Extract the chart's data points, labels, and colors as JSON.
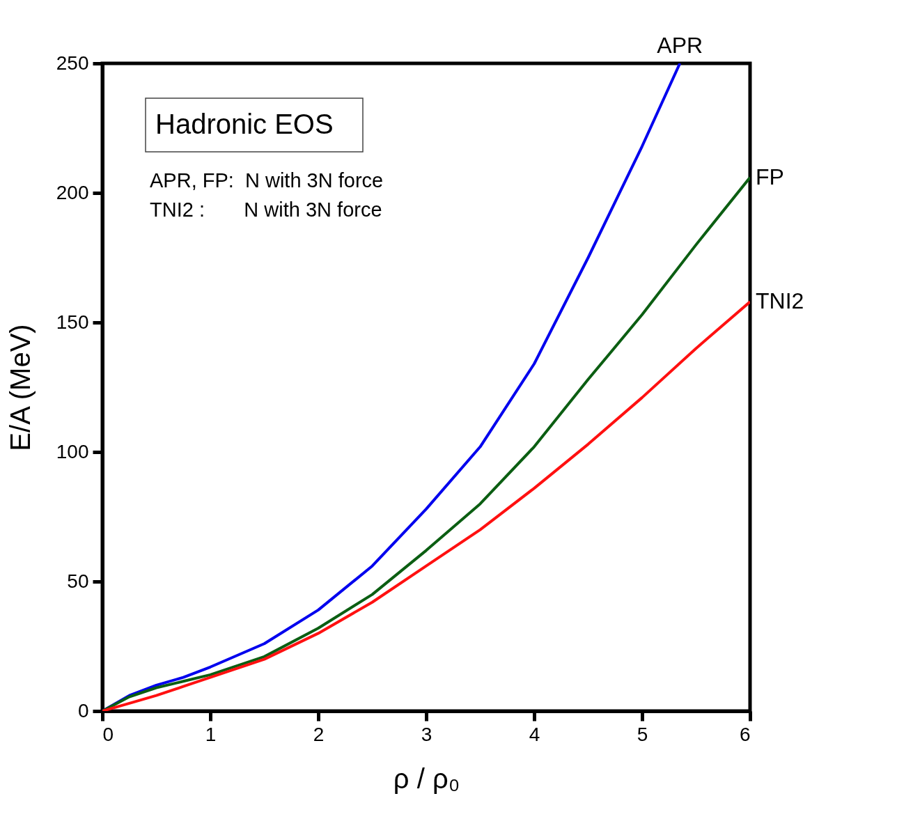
{
  "chart_data": {
    "type": "line",
    "xlabel": "ρ / ρ₀",
    "ylabel": "E/A (MeV)",
    "annotations": [
      "Hadronic EOS",
      "APR, FP:  N with 3N force",
      " TNI2 :       N with 3N force"
    ],
    "xlim": [
      0,
      6
    ],
    "ylim": [
      0,
      250
    ],
    "xticks": [
      0,
      1,
      2,
      3,
      4,
      5,
      6
    ],
    "yticks": [
      0,
      50,
      100,
      150,
      200,
      250
    ],
    "grid": false,
    "line_style": "solid",
    "marker": "none",
    "series": [
      {
        "name": "APR",
        "color": "#0000ee",
        "x": [
          0,
          0.25,
          0.5,
          0.75,
          1,
          1.5,
          2,
          2.5,
          3,
          3.5,
          4,
          4.5,
          5,
          5.35
        ],
        "values": [
          0,
          6,
          10,
          13,
          17,
          26,
          39,
          56,
          78,
          102,
          134,
          175,
          218,
          250
        ]
      },
      {
        "name": "FP",
        "color": "#0b5e12",
        "x": [
          0,
          0.25,
          0.5,
          0.75,
          1,
          1.5,
          2,
          2.5,
          3,
          3.5,
          4,
          4.5,
          5,
          5.5,
          6
        ],
        "values": [
          0,
          5.5,
          9,
          11.5,
          14,
          21,
          32,
          45,
          62,
          80,
          102,
          128,
          153,
          180,
          206
        ]
      },
      {
        "name": "TNI2",
        "color": "#ff1010",
        "x": [
          0,
          0.25,
          0.5,
          0.75,
          1,
          1.5,
          2,
          2.5,
          3,
          3.5,
          4,
          4.5,
          5,
          5.5,
          6
        ],
        "values": [
          0,
          3,
          6,
          9.5,
          13,
          20,
          30,
          42,
          56,
          70,
          86,
          103,
          121,
          140,
          158
        ]
      }
    ]
  }
}
